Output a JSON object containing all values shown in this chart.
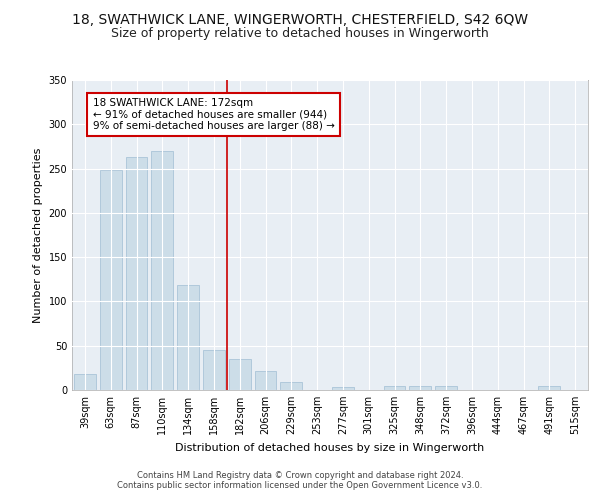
{
  "title": "18, SWATHWICK LANE, WINGERWORTH, CHESTERFIELD, S42 6QW",
  "subtitle": "Size of property relative to detached houses in Wingerworth",
  "xlabel": "Distribution of detached houses by size in Wingerworth",
  "ylabel": "Number of detached properties",
  "categories": [
    "39sqm",
    "63sqm",
    "87sqm",
    "110sqm",
    "134sqm",
    "158sqm",
    "182sqm",
    "206sqm",
    "229sqm",
    "253sqm",
    "277sqm",
    "301sqm",
    "325sqm",
    "348sqm",
    "372sqm",
    "396sqm",
    "444sqm",
    "467sqm",
    "491sqm",
    "515sqm"
  ],
  "values": [
    18,
    248,
    263,
    270,
    118,
    45,
    35,
    22,
    9,
    0,
    3,
    0,
    4,
    4,
    4,
    0,
    0,
    0,
    4,
    0
  ],
  "bar_color": "#ccdde8",
  "bar_edge_color": "#aac4d8",
  "vline_x": 5.5,
  "vline_color": "#cc0000",
  "annotation_text": "18 SWATHWICK LANE: 172sqm\n← 91% of detached houses are smaller (944)\n9% of semi-detached houses are larger (88) →",
  "annotation_box_color": "#ffffff",
  "annotation_box_edge_color": "#cc0000",
  "footer_text1": "Contains HM Land Registry data © Crown copyright and database right 2024.",
  "footer_text2": "Contains public sector information licensed under the Open Government Licence v3.0.",
  "ylim": [
    0,
    350
  ],
  "yticks": [
    0,
    50,
    100,
    150,
    200,
    250,
    300,
    350
  ],
  "background_color": "#ffffff",
  "plot_background_color": "#e8eef4",
  "grid_color": "#ffffff",
  "title_fontsize": 10,
  "subtitle_fontsize": 9,
  "axis_label_fontsize": 8,
  "tick_fontsize": 7,
  "annotation_fontsize": 7.5,
  "footer_fontsize": 6
}
